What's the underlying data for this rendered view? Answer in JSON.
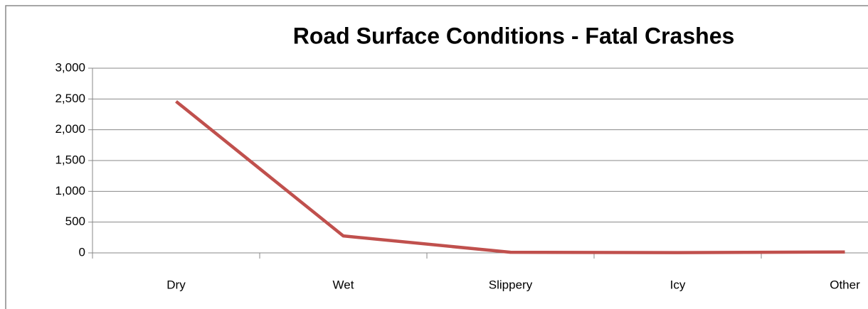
{
  "chart_data": {
    "type": "line",
    "title": "Road Surface Conditions - Fatal Crashes",
    "categories": [
      "Dry",
      "Wet",
      "Slippery",
      "Icy",
      "Other"
    ],
    "series": [
      {
        "name": "Fatal Crashes",
        "color": "#c0504d",
        "values": [
          2460,
          275,
          10,
          5,
          15
        ]
      }
    ],
    "ylim": [
      0,
      3000
    ],
    "yticks": [
      0,
      500,
      {
        "value": 1000,
        "label": "1,000"
      },
      {
        "value": 1500,
        "label": "1,500"
      },
      {
        "value": 2000,
        "label": "2,000"
      },
      {
        "value": 2500,
        "label": "2,500"
      },
      {
        "value": 3000,
        "label": "3,000"
      }
    ],
    "grid": true
  }
}
